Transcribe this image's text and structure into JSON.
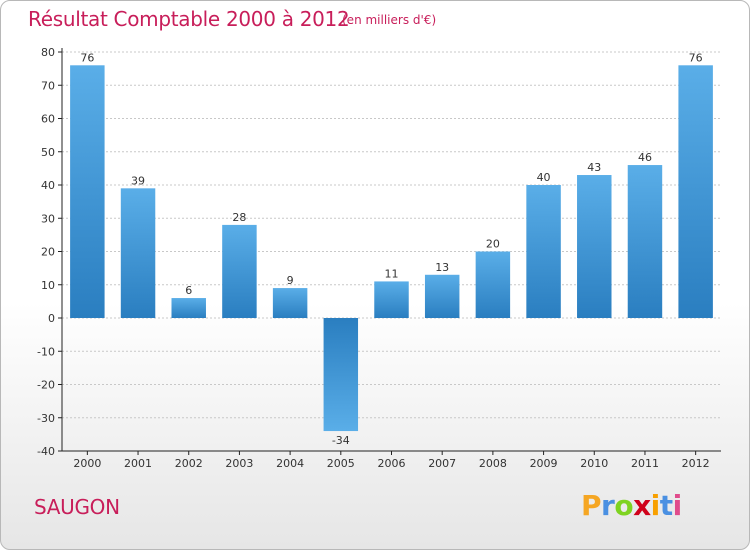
{
  "header": {
    "title": "Résultat Comptable 2000 à 2012",
    "subtitle": "(en milliers d'€)"
  },
  "commune": "SAUGON",
  "logo": {
    "letters": [
      "P",
      "r",
      "o",
      "x",
      "i",
      "t",
      "i"
    ],
    "colors": [
      "#f5a623",
      "#4a90e2",
      "#7ed321",
      "#d0021b",
      "#f8a000",
      "#4a90e2",
      "#e04c8c"
    ]
  },
  "colors": {
    "bar_light": "#5aaee8",
    "bar_dark": "#2a7ec0",
    "axis": "#222222",
    "grid": "#c8c8c8"
  },
  "chart_data": {
    "type": "bar",
    "title": "Résultat Comptable 2000 à 2012",
    "subtitle": "(en milliers d'€)",
    "xlabel": "",
    "ylabel": "",
    "categories": [
      "2000",
      "2001",
      "2002",
      "2003",
      "2004",
      "2005",
      "2006",
      "2007",
      "2008",
      "2009",
      "2010",
      "2011",
      "2012"
    ],
    "values": [
      76,
      39,
      6,
      28,
      9,
      -34,
      11,
      13,
      20,
      40,
      43,
      46,
      76
    ],
    "value_labels": [
      "76",
      "39",
      "6",
      "28",
      "9",
      "-34",
      "11",
      "13",
      "20",
      "40",
      "43",
      "46",
      "76"
    ],
    "ylim": [
      -40,
      80
    ],
    "yticks": [
      -40,
      -30,
      -20,
      -10,
      0,
      10,
      20,
      30,
      40,
      50,
      60,
      70,
      80
    ],
    "ytick_labels": [
      "-40",
      "-30",
      "-20",
      "-10",
      "0",
      "10",
      "20",
      "30",
      "40",
      "50",
      "60",
      "70",
      "80"
    ],
    "grid": true,
    "legend": "none"
  }
}
